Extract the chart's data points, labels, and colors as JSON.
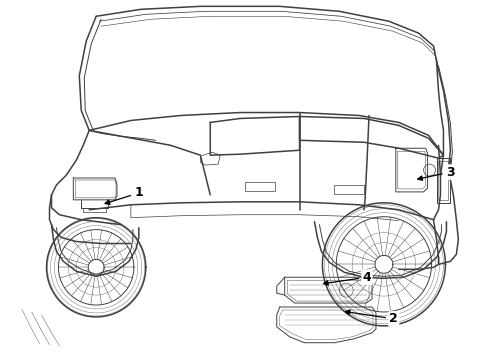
{
  "background_color": "#ffffff",
  "line_color": "#404040",
  "figsize": [
    4.9,
    3.6
  ],
  "dpi": 100
}
